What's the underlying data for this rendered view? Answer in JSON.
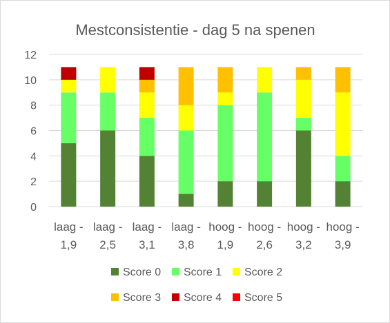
{
  "chart_data": {
    "type": "bar",
    "stacked": true,
    "title": "Mestconsistentie - dag 5 na spenen",
    "xlabel": "",
    "ylabel": "",
    "ylim": [
      0,
      12
    ],
    "yticks": [
      0,
      2,
      4,
      6,
      8,
      10,
      12
    ],
    "grid": true,
    "legend_position": "bottom",
    "categories": [
      [
        "laag -",
        "1,9"
      ],
      [
        "laag -",
        "2,5"
      ],
      [
        "laag -",
        "3,1"
      ],
      [
        "laag -",
        "3,8"
      ],
      [
        "hoog -",
        "1,9"
      ],
      [
        "hoog -",
        "2,6"
      ],
      [
        "hoog -",
        "3,2"
      ],
      [
        "hoog -",
        "3,9"
      ]
    ],
    "series": [
      {
        "name": "Score 0",
        "color": "#548235",
        "values": [
          5,
          6,
          4,
          1,
          2,
          2,
          6,
          2
        ]
      },
      {
        "name": "Score 1",
        "color": "#66ff66",
        "values": [
          4,
          3,
          3,
          5,
          6,
          7,
          1,
          2
        ]
      },
      {
        "name": "Score 2",
        "color": "#ffff00",
        "values": [
          1,
          2,
          2,
          2,
          1,
          2,
          3,
          5
        ]
      },
      {
        "name": "Score 3",
        "color": "#ffc000",
        "values": [
          0,
          0,
          1,
          3,
          2,
          0,
          1,
          2
        ]
      },
      {
        "name": "Score 4",
        "color": "#c00000",
        "values": [
          1,
          0,
          1,
          0,
          0,
          0,
          0,
          0
        ]
      },
      {
        "name": "Score 5",
        "color": "#ff0000",
        "values": [
          0,
          0,
          0,
          0,
          0,
          0,
          0,
          0
        ]
      }
    ]
  }
}
